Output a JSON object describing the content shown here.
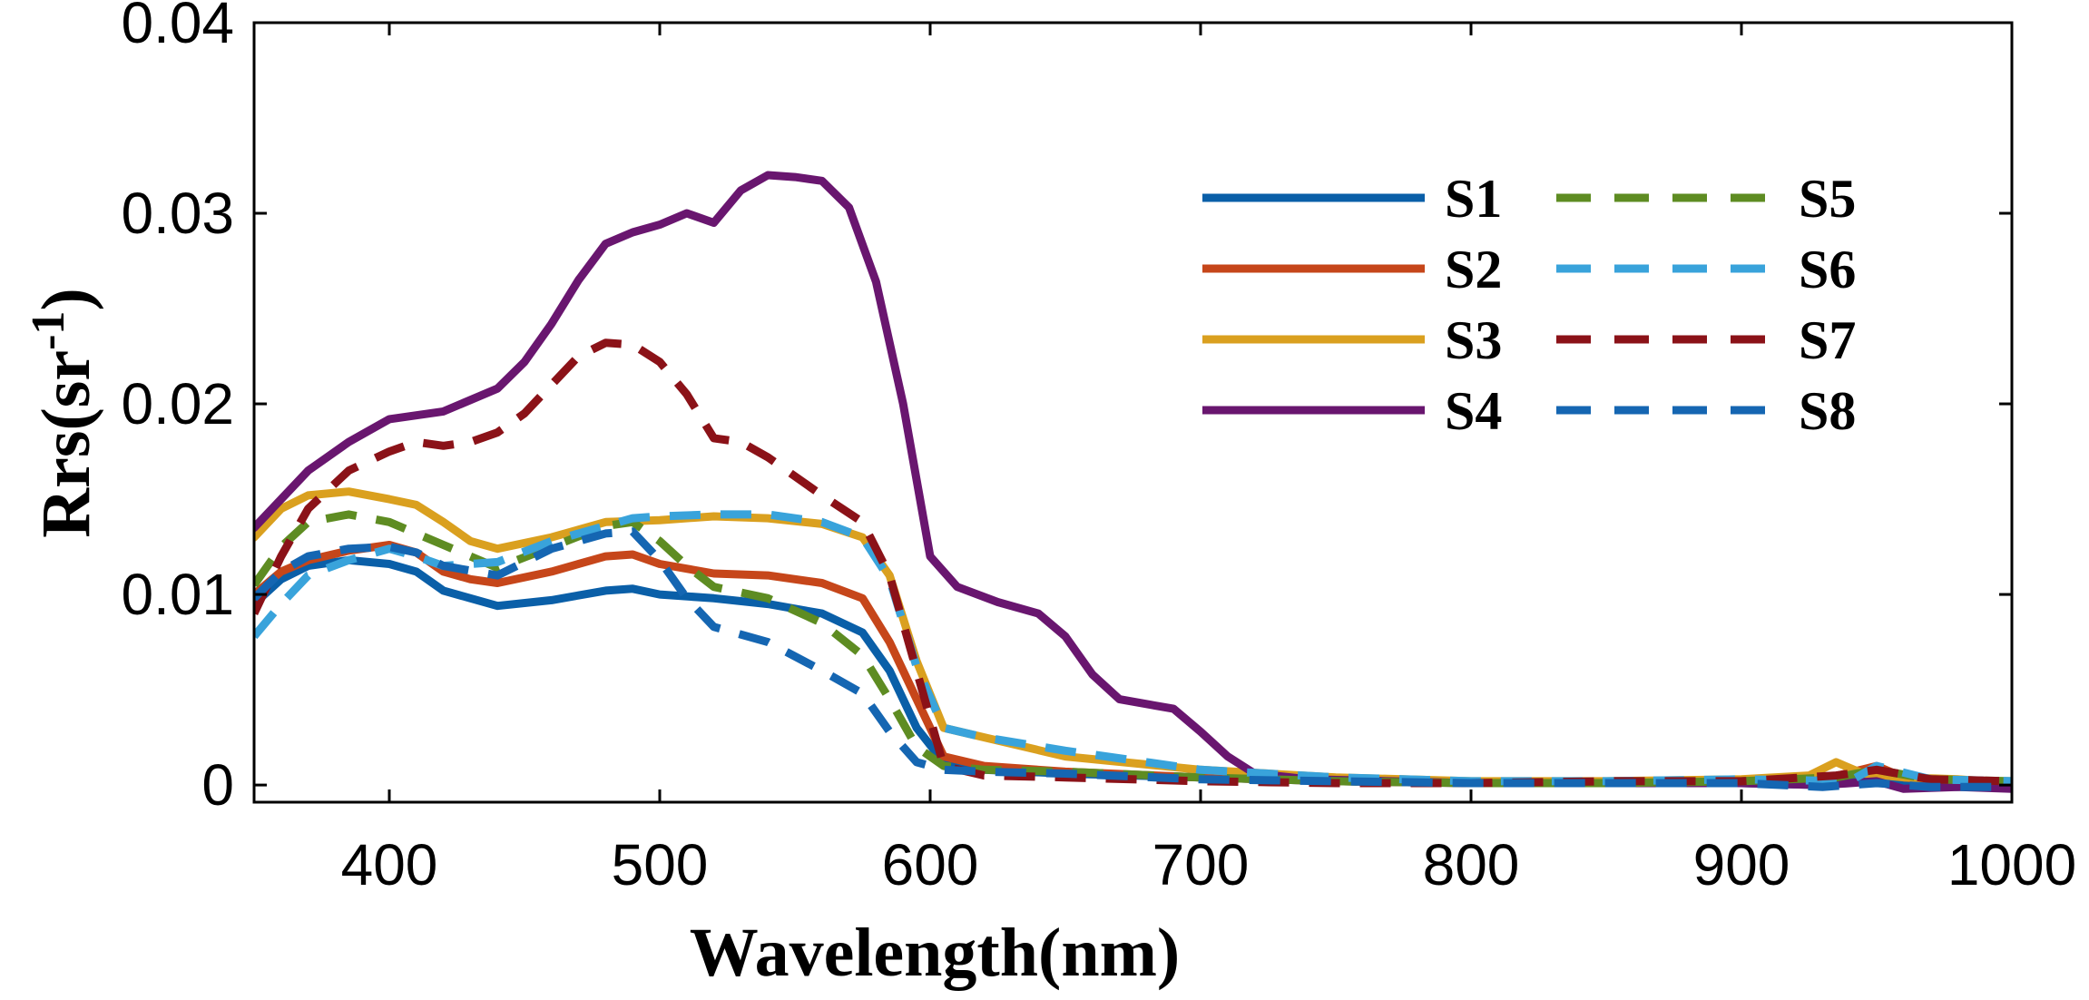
{
  "chart_data": {
    "type": "line",
    "xlabel": "Wavelength(nm)",
    "ylabel": "Rrs(sr",
    "ylabel_sup": "-1",
    "ylabel_close": ")",
    "xlim": [
      350,
      1000
    ],
    "ylim": [
      0,
      0.04
    ],
    "xticks": [
      400,
      500,
      600,
      700,
      800,
      900,
      1000
    ],
    "xtick_labels": [
      "400",
      "500",
      "600",
      "700",
      "800",
      "900",
      "1000"
    ],
    "yticks": [
      0,
      0.01,
      0.02,
      0.03,
      0.04
    ],
    "ytick_labels": [
      "0",
      "0.01",
      "0.02",
      "0.03",
      "0.04"
    ],
    "grid": false,
    "legend_position": "top-right",
    "series": [
      {
        "name": "S1",
        "color": "#0a5fa8",
        "dash": "solid",
        "points": [
          [
            350,
            0.0095
          ],
          [
            360,
            0.0108
          ],
          [
            370,
            0.0115
          ],
          [
            385,
            0.0118
          ],
          [
            400,
            0.0116
          ],
          [
            410,
            0.0112
          ],
          [
            420,
            0.0102
          ],
          [
            430,
            0.0098
          ],
          [
            440,
            0.0094
          ],
          [
            460,
            0.0097
          ],
          [
            480,
            0.0102
          ],
          [
            490,
            0.0103
          ],
          [
            500,
            0.01
          ],
          [
            520,
            0.0098
          ],
          [
            540,
            0.0095
          ],
          [
            560,
            0.009
          ],
          [
            575,
            0.008
          ],
          [
            585,
            0.006
          ],
          [
            595,
            0.003
          ],
          [
            605,
            0.0012
          ],
          [
            620,
            0.0008
          ],
          [
            650,
            0.0006
          ],
          [
            700,
            0.0004
          ],
          [
            750,
            0.0002
          ],
          [
            800,
            0.0001
          ],
          [
            850,
            0.0001
          ],
          [
            900,
            0.0001
          ],
          [
            930,
            0.0
          ],
          [
            945,
            0.0002
          ],
          [
            960,
            0.0
          ],
          [
            980,
            -0.0001
          ],
          [
            1000,
            0.0
          ]
        ]
      },
      {
        "name": "S2",
        "color": "#c6461a",
        "dash": "solid",
        "points": [
          [
            350,
            0.01
          ],
          [
            360,
            0.0112
          ],
          [
            370,
            0.0118
          ],
          [
            385,
            0.0123
          ],
          [
            400,
            0.0126
          ],
          [
            410,
            0.0122
          ],
          [
            420,
            0.0112
          ],
          [
            430,
            0.0108
          ],
          [
            440,
            0.0106
          ],
          [
            460,
            0.0112
          ],
          [
            480,
            0.012
          ],
          [
            490,
            0.0121
          ],
          [
            500,
            0.0116
          ],
          [
            520,
            0.0111
          ],
          [
            540,
            0.011
          ],
          [
            560,
            0.0106
          ],
          [
            575,
            0.0098
          ],
          [
            585,
            0.0075
          ],
          [
            595,
            0.0045
          ],
          [
            605,
            0.0015
          ],
          [
            620,
            0.001
          ],
          [
            650,
            0.0007
          ],
          [
            700,
            0.0004
          ],
          [
            750,
            0.0002
          ],
          [
            800,
            0.0001
          ],
          [
            850,
            0.0001
          ],
          [
            900,
            0.0002
          ],
          [
            930,
            0.0003
          ],
          [
            950,
            0.001
          ],
          [
            960,
            0.0004
          ],
          [
            980,
            0.0001
          ],
          [
            1000,
            0.0001
          ]
        ]
      },
      {
        "name": "S3",
        "color": "#daa01f",
        "dash": "solid",
        "points": [
          [
            350,
            0.013
          ],
          [
            360,
            0.0145
          ],
          [
            370,
            0.0152
          ],
          [
            385,
            0.0154
          ],
          [
            400,
            0.015
          ],
          [
            410,
            0.0147
          ],
          [
            420,
            0.0138
          ],
          [
            430,
            0.0128
          ],
          [
            440,
            0.0124
          ],
          [
            460,
            0.013
          ],
          [
            480,
            0.0138
          ],
          [
            500,
            0.0139
          ],
          [
            520,
            0.0141
          ],
          [
            540,
            0.014
          ],
          [
            560,
            0.0137
          ],
          [
            575,
            0.013
          ],
          [
            585,
            0.011
          ],
          [
            595,
            0.0065
          ],
          [
            605,
            0.003
          ],
          [
            620,
            0.0025
          ],
          [
            650,
            0.0015
          ],
          [
            700,
            0.0008
          ],
          [
            750,
            0.0004
          ],
          [
            800,
            0.0002
          ],
          [
            850,
            0.0002
          ],
          [
            900,
            0.0003
          ],
          [
            925,
            0.0005
          ],
          [
            935,
            0.0012
          ],
          [
            945,
            0.0006
          ],
          [
            960,
            0.0004
          ],
          [
            980,
            0.0003
          ],
          [
            1000,
            0.0001
          ]
        ]
      },
      {
        "name": "S4",
        "color": "#69166f",
        "dash": "solid",
        "points": [
          [
            350,
            0.0135
          ],
          [
            360,
            0.015
          ],
          [
            370,
            0.0165
          ],
          [
            385,
            0.018
          ],
          [
            400,
            0.0192
          ],
          [
            420,
            0.0196
          ],
          [
            440,
            0.0208
          ],
          [
            450,
            0.0222
          ],
          [
            460,
            0.0242
          ],
          [
            470,
            0.0265
          ],
          [
            480,
            0.0284
          ],
          [
            490,
            0.029
          ],
          [
            500,
            0.0294
          ],
          [
            510,
            0.03
          ],
          [
            520,
            0.0295
          ],
          [
            530,
            0.0312
          ],
          [
            540,
            0.032
          ],
          [
            550,
            0.0319
          ],
          [
            560,
            0.0317
          ],
          [
            570,
            0.0303
          ],
          [
            580,
            0.0264
          ],
          [
            590,
            0.02
          ],
          [
            600,
            0.012
          ],
          [
            610,
            0.0104
          ],
          [
            625,
            0.0096
          ],
          [
            640,
            0.009
          ],
          [
            650,
            0.0078
          ],
          [
            660,
            0.0058
          ],
          [
            670,
            0.0045
          ],
          [
            690,
            0.004
          ],
          [
            700,
            0.0028
          ],
          [
            710,
            0.0015
          ],
          [
            720,
            0.0006
          ],
          [
            740,
            0.0003
          ],
          [
            800,
            0.0001
          ],
          [
            850,
            0.0001
          ],
          [
            900,
            0.0001
          ],
          [
            930,
            0.0
          ],
          [
            950,
            0.0002
          ],
          [
            960,
            -0.0002
          ],
          [
            980,
            -0.0001
          ],
          [
            1000,
            -0.0002
          ]
        ]
      },
      {
        "name": "S5",
        "color": "#5e8c22",
        "dash": "dashed",
        "points": [
          [
            350,
            0.0105
          ],
          [
            360,
            0.0125
          ],
          [
            370,
            0.0138
          ],
          [
            385,
            0.0142
          ],
          [
            400,
            0.0138
          ],
          [
            410,
            0.0132
          ],
          [
            420,
            0.0126
          ],
          [
            440,
            0.0114
          ],
          [
            460,
            0.0125
          ],
          [
            480,
            0.0136
          ],
          [
            490,
            0.0138
          ],
          [
            500,
            0.0128
          ],
          [
            510,
            0.0115
          ],
          [
            520,
            0.0104
          ],
          [
            540,
            0.0098
          ],
          [
            560,
            0.0085
          ],
          [
            575,
            0.0068
          ],
          [
            585,
            0.0045
          ],
          [
            595,
            0.002
          ],
          [
            605,
            0.001
          ],
          [
            620,
            0.0008
          ],
          [
            650,
            0.0007
          ],
          [
            700,
            0.0004
          ],
          [
            750,
            0.0002
          ],
          [
            800,
            0.0001
          ],
          [
            850,
            0.0001
          ],
          [
            900,
            0.0002
          ],
          [
            935,
            0.0004
          ],
          [
            950,
            0.0008
          ],
          [
            970,
            0.0003
          ],
          [
            1000,
            0.0002
          ]
        ]
      },
      {
        "name": "S6",
        "color": "#39a3db",
        "dash": "dashed",
        "points": [
          [
            350,
            0.0078
          ],
          [
            360,
            0.0095
          ],
          [
            370,
            0.011
          ],
          [
            385,
            0.0118
          ],
          [
            400,
            0.0124
          ],
          [
            410,
            0.012
          ],
          [
            420,
            0.0115
          ],
          [
            440,
            0.0117
          ],
          [
            460,
            0.0128
          ],
          [
            480,
            0.0136
          ],
          [
            490,
            0.014
          ],
          [
            500,
            0.0141
          ],
          [
            520,
            0.0142
          ],
          [
            540,
            0.0142
          ],
          [
            560,
            0.0138
          ],
          [
            575,
            0.013
          ],
          [
            585,
            0.0108
          ],
          [
            595,
            0.0062
          ],
          [
            605,
            0.003
          ],
          [
            620,
            0.0025
          ],
          [
            650,
            0.0018
          ],
          [
            700,
            0.0008
          ],
          [
            750,
            0.0004
          ],
          [
            800,
            0.0002
          ],
          [
            850,
            0.0002
          ],
          [
            900,
            0.0003
          ],
          [
            940,
            0.0002
          ],
          [
            950,
            0.001
          ],
          [
            970,
            0.0003
          ],
          [
            1000,
            0.0002
          ]
        ]
      },
      {
        "name": "S7",
        "color": "#8b1218",
        "dash": "dashed",
        "points": [
          [
            350,
            0.009
          ],
          [
            360,
            0.012
          ],
          [
            370,
            0.0145
          ],
          [
            385,
            0.0165
          ],
          [
            400,
            0.0175
          ],
          [
            410,
            0.018
          ],
          [
            420,
            0.0178
          ],
          [
            430,
            0.018
          ],
          [
            440,
            0.0185
          ],
          [
            450,
            0.0195
          ],
          [
            460,
            0.021
          ],
          [
            470,
            0.0225
          ],
          [
            480,
            0.0232
          ],
          [
            490,
            0.0231
          ],
          [
            500,
            0.0222
          ],
          [
            510,
            0.0205
          ],
          [
            520,
            0.0182
          ],
          [
            530,
            0.018
          ],
          [
            540,
            0.0172
          ],
          [
            560,
            0.0152
          ],
          [
            575,
            0.0138
          ],
          [
            585,
            0.011
          ],
          [
            595,
            0.006
          ],
          [
            605,
            0.001
          ],
          [
            620,
            0.0005
          ],
          [
            650,
            0.0004
          ],
          [
            700,
            0.0002
          ],
          [
            750,
            0.0001
          ],
          [
            800,
            0.0001
          ],
          [
            850,
            0.0002
          ],
          [
            900,
            0.0002
          ],
          [
            935,
            0.0005
          ],
          [
            950,
            0.0008
          ],
          [
            970,
            0.0003
          ],
          [
            1000,
            0.0002
          ]
        ]
      },
      {
        "name": "S8",
        "color": "#1566b2",
        "dash": "dashed",
        "points": [
          [
            350,
            0.0098
          ],
          [
            360,
            0.0112
          ],
          [
            370,
            0.012
          ],
          [
            385,
            0.0124
          ],
          [
            400,
            0.0125
          ],
          [
            410,
            0.0122
          ],
          [
            420,
            0.0115
          ],
          [
            440,
            0.011
          ],
          [
            460,
            0.0124
          ],
          [
            480,
            0.0132
          ],
          [
            490,
            0.0133
          ],
          [
            500,
            0.0118
          ],
          [
            510,
            0.0098
          ],
          [
            520,
            0.0083
          ],
          [
            540,
            0.0075
          ],
          [
            560,
            0.006
          ],
          [
            575,
            0.0048
          ],
          [
            585,
            0.0028
          ],
          [
            595,
            0.0012
          ],
          [
            605,
            0.0008
          ],
          [
            620,
            0.0007
          ],
          [
            650,
            0.0006
          ],
          [
            700,
            0.0003
          ],
          [
            750,
            0.0002
          ],
          [
            800,
            0.0001
          ],
          [
            850,
            0.0001
          ],
          [
            900,
            0.0001
          ],
          [
            930,
            -0.0001
          ],
          [
            950,
            0.0001
          ],
          [
            970,
            -0.0001
          ],
          [
            1000,
            -0.0001
          ]
        ]
      }
    ]
  }
}
